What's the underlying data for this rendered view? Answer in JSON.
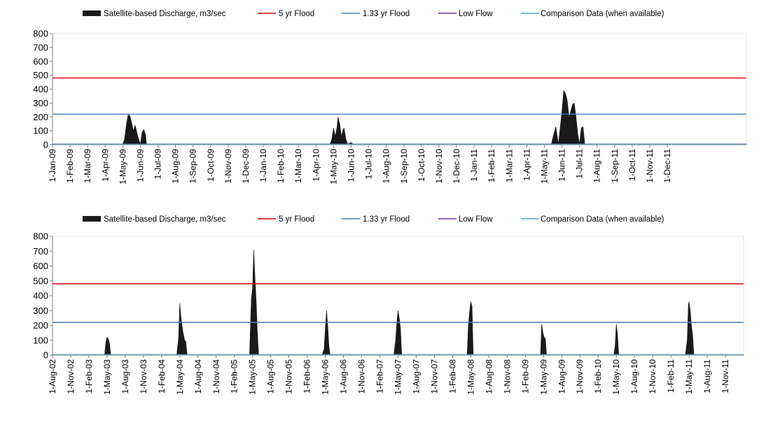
{
  "colors": {
    "discharge": "#1a1a1a",
    "flood5": "#e00000",
    "flood133": "#4a7ebb",
    "low_flow": "#7030a0",
    "comparison": "#4bacc6",
    "axis": "#808080"
  },
  "chart_data": [
    {
      "type": "area",
      "legend": [
        "Satellite-based Discharge, m3/sec",
        "5 yr Flood",
        "1.33 yr Flood",
        "Low Flow",
        "Comparison Data (when available)"
      ],
      "ylim": [
        0,
        800
      ],
      "yticks": [
        0,
        100,
        200,
        300,
        400,
        500,
        600,
        700,
        800
      ],
      "x_labels": [
        "1-Jan-09",
        "1-Feb-09",
        "1-Mar-09",
        "1-Apr-09",
        "1-May-09",
        "1-Jun-09",
        "1-Jul-09",
        "1-Aug-09",
        "1-Sep-09",
        "1-Oct-09",
        "1-Nov-09",
        "1-Dec-09",
        "1-Jan-10",
        "1-Feb-10",
        "1-Mar-10",
        "1-Apr-10",
        "1-May-10",
        "1-Jun-10",
        "1-Jul-10",
        "1-Aug-10",
        "1-Sep-10",
        "1-Oct-10",
        "1-Nov-10",
        "1-Dec-10",
        "1-Jan-11",
        "1-Feb-11",
        "1-Mar-11",
        "1-Apr-11",
        "1-May-11",
        "1-Jun-11",
        "1-Jul-11",
        "1-Aug-11",
        "1-Sep-11",
        "1-Oct-11",
        "1-Nov-11",
        "1-Dec-11"
      ],
      "x_range_months": [
        0,
        39.5
      ],
      "flood_5yr": 480,
      "flood_1_33yr": 220,
      "low_flow": 5,
      "discharge": [
        [
          0,
          5
        ],
        [
          4.0,
          5
        ],
        [
          4.1,
          40
        ],
        [
          4.2,
          140
        ],
        [
          4.3,
          215
        ],
        [
          4.4,
          210
        ],
        [
          4.5,
          160
        ],
        [
          4.6,
          100
        ],
        [
          4.7,
          140
        ],
        [
          4.8,
          90
        ],
        [
          4.9,
          40
        ],
        [
          5.0,
          5
        ],
        [
          5.1,
          90
        ],
        [
          5.2,
          110
        ],
        [
          5.3,
          70
        ],
        [
          5.35,
          5
        ],
        [
          15.8,
          5
        ],
        [
          15.9,
          40
        ],
        [
          16.0,
          120
        ],
        [
          16.1,
          60
        ],
        [
          16.2,
          130
        ],
        [
          16.25,
          200
        ],
        [
          16.35,
          150
        ],
        [
          16.45,
          60
        ],
        [
          16.55,
          110
        ],
        [
          16.6,
          120
        ],
        [
          16.7,
          40
        ],
        [
          16.8,
          5
        ],
        [
          17.0,
          15
        ],
        [
          17.1,
          5
        ],
        [
          28.4,
          5
        ],
        [
          28.5,
          60
        ],
        [
          28.65,
          130
        ],
        [
          28.8,
          5
        ],
        [
          29.0,
          240
        ],
        [
          29.1,
          390
        ],
        [
          29.2,
          370
        ],
        [
          29.3,
          320
        ],
        [
          29.4,
          200
        ],
        [
          29.5,
          240
        ],
        [
          29.6,
          290
        ],
        [
          29.7,
          300
        ],
        [
          29.8,
          200
        ],
        [
          29.9,
          80
        ],
        [
          30.0,
          5
        ],
        [
          30.1,
          120
        ],
        [
          30.2,
          130
        ],
        [
          30.3,
          5
        ],
        [
          39.5,
          5
        ]
      ]
    },
    {
      "type": "area",
      "legend": [
        "Satellite-based Discharge, m3/sec",
        "5 yr Flood",
        "1.33 yr Flood",
        "Low Flow",
        "Comparison Data (when available)"
      ],
      "ylim": [
        0,
        800
      ],
      "yticks": [
        0,
        100,
        200,
        300,
        400,
        500,
        600,
        700,
        800
      ],
      "x_labels": [
        "1-Aug-02",
        "1-Nov-02",
        "1-Feb-03",
        "1-May-03",
        "1-Aug-03",
        "1-Nov-03",
        "1-Feb-04",
        "1-May-04",
        "1-Aug-04",
        "1-Nov-04",
        "1-Feb-05",
        "1-May-05",
        "1-Aug-05",
        "1-Nov-05",
        "1-Feb-06",
        "1-May-06",
        "1-Aug-06",
        "1-Nov-06",
        "1-Feb-07",
        "1-May-07",
        "1-Aug-07",
        "1-Nov-07",
        "1-Feb-08",
        "1-May-08",
        "1-Aug-08",
        "1-Nov-08",
        "1-Feb-09",
        "1-May-09",
        "1-Aug-09",
        "1-Nov-09",
        "1-Feb-10",
        "1-May-10",
        "1-Aug-10",
        "1-Nov-10",
        "1-Feb-11",
        "1-May-11",
        "1-Aug-11",
        "1-Nov-11"
      ],
      "x_range_months": [
        0,
        114
      ],
      "flood_5yr": 480,
      "flood_1_33yr": 220,
      "low_flow": 3,
      "discharge": [
        [
          0,
          3
        ],
        [
          8.6,
          3
        ],
        [
          8.8,
          90
        ],
        [
          9.0,
          120
        ],
        [
          9.2,
          110
        ],
        [
          9.4,
          80
        ],
        [
          9.6,
          3
        ],
        [
          20.5,
          3
        ],
        [
          20.8,
          120
        ],
        [
          21.0,
          350
        ],
        [
          21.2,
          250
        ],
        [
          21.5,
          160
        ],
        [
          21.8,
          100
        ],
        [
          22.0,
          90
        ],
        [
          22.2,
          3
        ],
        [
          32.5,
          3
        ],
        [
          32.8,
          380
        ],
        [
          33.0,
          450
        ],
        [
          33.2,
          710
        ],
        [
          33.4,
          520
        ],
        [
          33.6,
          360
        ],
        [
          33.8,
          150
        ],
        [
          34.0,
          3
        ],
        [
          44.5,
          3
        ],
        [
          44.8,
          40
        ],
        [
          45.0,
          180
        ],
        [
          45.2,
          300
        ],
        [
          45.4,
          200
        ],
        [
          45.6,
          60
        ],
        [
          45.8,
          3
        ],
        [
          56.3,
          3
        ],
        [
          56.6,
          100
        ],
        [
          56.8,
          220
        ],
        [
          57.0,
          300
        ],
        [
          57.2,
          250
        ],
        [
          57.4,
          180
        ],
        [
          57.6,
          3
        ],
        [
          68.4,
          3
        ],
        [
          68.6,
          200
        ],
        [
          68.8,
          290
        ],
        [
          69.0,
          360
        ],
        [
          69.2,
          330
        ],
        [
          69.4,
          3
        ],
        [
          80.5,
          3
        ],
        [
          80.7,
          210
        ],
        [
          80.9,
          150
        ],
        [
          81.1,
          120
        ],
        [
          81.3,
          110
        ],
        [
          81.5,
          3
        ],
        [
          92.6,
          3
        ],
        [
          92.8,
          60
        ],
        [
          93.0,
          210
        ],
        [
          93.2,
          140
        ],
        [
          93.4,
          3
        ],
        [
          104.4,
          3
        ],
        [
          104.7,
          100
        ],
        [
          104.9,
          340
        ],
        [
          105.0,
          360
        ],
        [
          105.2,
          300
        ],
        [
          105.4,
          200
        ],
        [
          105.6,
          130
        ],
        [
          105.8,
          3
        ],
        [
          114,
          3
        ]
      ]
    }
  ]
}
